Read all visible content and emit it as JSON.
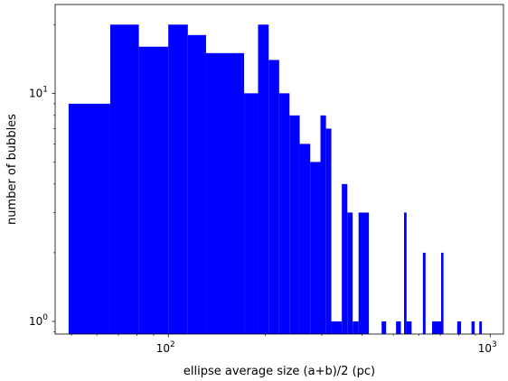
{
  "chart_data": {
    "type": "bar",
    "title": "",
    "xlabel": "ellipse average size (a+b)/2 (pc)",
    "ylabel": "number of bubbles",
    "xscale": "log",
    "yscale": "log",
    "xlim": [
      44.5,
      1100
    ],
    "ylim": [
      0.88,
      24.5
    ],
    "x_ticks": [
      {
        "value": 100,
        "base": "10",
        "exp": "2"
      },
      {
        "value": 1000,
        "base": "10",
        "exp": "3"
      }
    ],
    "y_ticks": [
      {
        "value": 1,
        "base": "10",
        "exp": "0"
      },
      {
        "value": 10,
        "base": "10",
        "exp": "1"
      }
    ],
    "grid": false,
    "legend": "none",
    "bar_color": "#0000ff",
    "bins": [
      {
        "x0": 49,
        "x1": 66,
        "count": 9
      },
      {
        "x0": 66,
        "x1": 81,
        "count": 20
      },
      {
        "x0": 81,
        "x1": 100,
        "count": 16
      },
      {
        "x0": 100,
        "x1": 115,
        "count": 20
      },
      {
        "x0": 115,
        "x1": 131,
        "count": 18
      },
      {
        "x0": 131,
        "x1": 172,
        "count": 15
      },
      {
        "x0": 172,
        "x1": 190,
        "count": 10
      },
      {
        "x0": 190,
        "x1": 205,
        "count": 20
      },
      {
        "x0": 205,
        "x1": 221,
        "count": 14
      },
      {
        "x0": 221,
        "x1": 238,
        "count": 10
      },
      {
        "x0": 238,
        "x1": 256,
        "count": 8
      },
      {
        "x0": 256,
        "x1": 276,
        "count": 6
      },
      {
        "x0": 276,
        "x1": 297,
        "count": 5
      },
      {
        "x0": 297,
        "x1": 309,
        "count": 8
      },
      {
        "x0": 309,
        "x1": 321,
        "count": 7
      },
      {
        "x0": 321,
        "x1": 346,
        "count": 1
      },
      {
        "x0": 346,
        "x1": 360,
        "count": 4
      },
      {
        "x0": 360,
        "x1": 374,
        "count": 3
      },
      {
        "x0": 374,
        "x1": 390,
        "count": 1
      },
      {
        "x0": 390,
        "x1": 420,
        "count": 3
      },
      {
        "x0": 460,
        "x1": 475,
        "count": 1
      },
      {
        "x0": 510,
        "x1": 528,
        "count": 1
      },
      {
        "x0": 540,
        "x1": 550,
        "count": 3
      },
      {
        "x0": 550,
        "x1": 570,
        "count": 1
      },
      {
        "x0": 618,
        "x1": 630,
        "count": 2
      },
      {
        "x0": 660,
        "x1": 704,
        "count": 1
      },
      {
        "x0": 704,
        "x1": 716,
        "count": 2
      },
      {
        "x0": 790,
        "x1": 812,
        "count": 1
      },
      {
        "x0": 875,
        "x1": 895,
        "count": 1
      },
      {
        "x0": 925,
        "x1": 942,
        "count": 1
      }
    ]
  }
}
